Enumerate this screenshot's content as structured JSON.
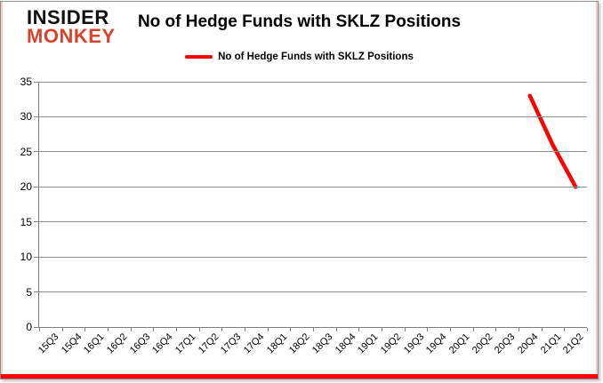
{
  "brand": {
    "line1": "INSIDER",
    "line2": "MONKEY"
  },
  "title": "No of Hedge Funds with SKLZ Positions",
  "legend": {
    "label": "No of Hedge Funds with SKLZ Positions"
  },
  "colors": {
    "series": "#fe0000",
    "brand_accent": "#d8432e",
    "gridline": "#8f8f8f",
    "axis": "#7f7f7f",
    "frame_border": "#8e8e8e"
  },
  "chart_data": {
    "type": "line",
    "title": "No of Hedge Funds with SKLZ Positions",
    "xlabel": "",
    "ylabel": "",
    "ylim": [
      0,
      35
    ],
    "y_ticks": [
      0,
      5,
      10,
      15,
      20,
      25,
      30,
      35
    ],
    "grid": true,
    "legend_position": "top",
    "categories": [
      "15Q3",
      "15Q4",
      "16Q1",
      "16Q2",
      "16Q3",
      "16Q4",
      "17Q1",
      "17Q2",
      "17Q3",
      "17Q4",
      "18Q1",
      "18Q2",
      "18Q3",
      "18Q4",
      "19Q1",
      "19Q2",
      "19Q3",
      "19Q4",
      "20Q1",
      "20Q2",
      "20Q3",
      "20Q4",
      "21Q1",
      "21Q2"
    ],
    "series": [
      {
        "name": "No of Hedge Funds with SKLZ Positions",
        "color": "#fe0000",
        "values": [
          null,
          null,
          null,
          null,
          null,
          null,
          null,
          null,
          null,
          null,
          null,
          null,
          null,
          null,
          null,
          null,
          null,
          null,
          null,
          null,
          null,
          33,
          26,
          20
        ]
      }
    ]
  }
}
